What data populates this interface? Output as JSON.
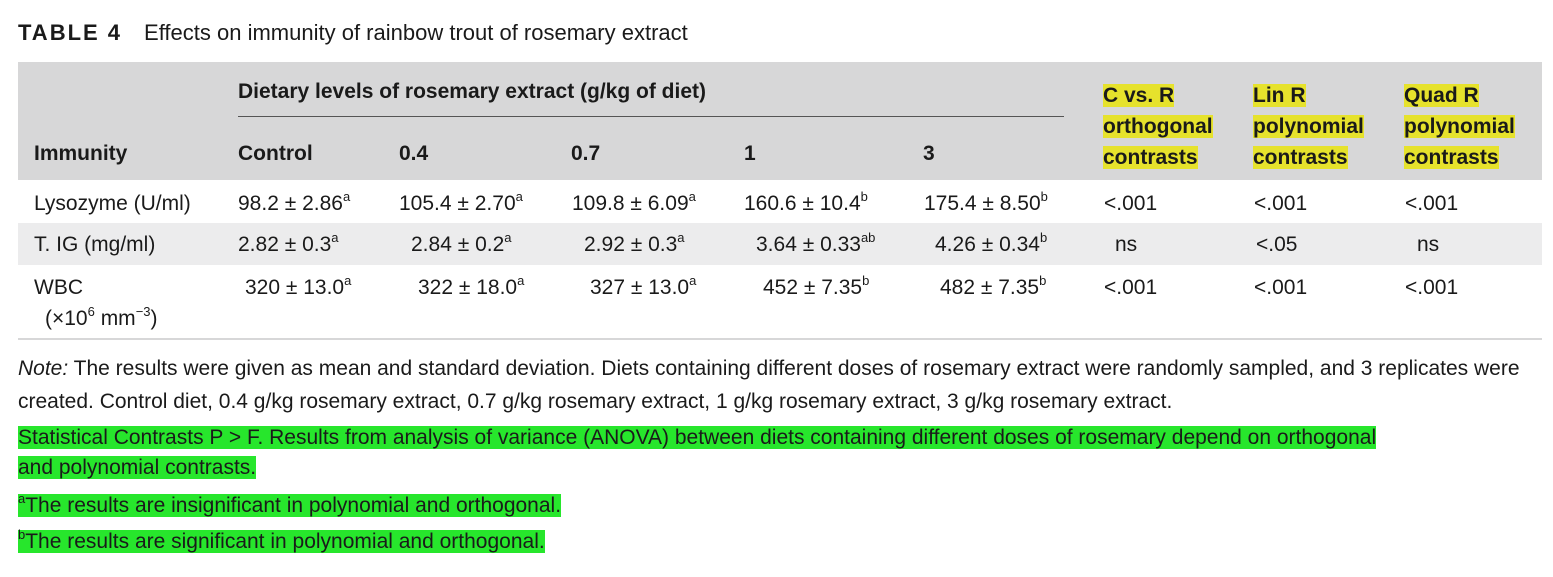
{
  "caption": {
    "label": "TABLE 4",
    "title": "Effects on immunity of rainbow trout of rosemary extract"
  },
  "header": {
    "group_label": "Dietary levels of rosemary extract (g/kg of diet)",
    "row_label": "Immunity",
    "dose_columns": [
      "Control",
      "0.4",
      "0.7",
      "1",
      "3"
    ],
    "contrast_columns": [
      [
        "C vs. R",
        "orthogonal",
        "contrasts"
      ],
      [
        "Lin R",
        "polynomial",
        "contrasts"
      ],
      [
        "Quad R",
        "polynomial",
        "contrasts"
      ]
    ]
  },
  "rows": [
    {
      "name": "Lysozyme (U/ml)",
      "cells": [
        [
          "98.2 ± 2.86",
          "a"
        ],
        [
          "105.4 ± 2.70",
          "a"
        ],
        [
          "109.8 ± 6.09",
          "a"
        ],
        [
          "160.6 ± 10.4",
          "b"
        ],
        [
          "175.4 ± 8.50",
          "b"
        ]
      ],
      "contrasts": [
        "<.001",
        "<.001",
        "<.001"
      ]
    },
    {
      "name": "T. IG (mg/ml)",
      "cells": [
        [
          "2.82 ± 0.3",
          "a"
        ],
        [
          "2.84 ± 0.2",
          "a"
        ],
        [
          "2.92 ± 0.3",
          "a"
        ],
        [
          "3.64 ± 0.33",
          "ab"
        ],
        [
          "4.26 ± 0.34",
          "b"
        ]
      ],
      "contrasts": [
        "ns",
        "<.05",
        "ns"
      ]
    },
    {
      "name": "WBC",
      "unit_parts": [
        "(×10",
        "6",
        " mm",
        "−3",
        ")"
      ],
      "cells": [
        [
          "320 ± 13.0",
          "a"
        ],
        [
          "322 ± 18.0",
          "a"
        ],
        [
          "327 ± 13.0",
          "a"
        ],
        [
          "452 ± 7.35",
          "b"
        ],
        [
          "482 ± 7.35",
          "b"
        ]
      ],
      "contrasts": [
        "<.001",
        "<.001",
        "<.001"
      ]
    }
  ],
  "note": {
    "label": "Note:",
    "text": " The results were given as mean and standard deviation. Diets containing different doses of rosemary extract were randomly sampled, and 3 replicates were created. Control diet, 0.4 g/kg rosemary extract, 0.7 g/kg rosemary extract, 1 g/kg rosemary extract, 3 g/kg rosemary extract."
  },
  "footnotes": {
    "contrasts_line1": "Statistical Contrasts P > F. Results from analysis of variance (ANOVA) between diets containing different doses of rosemary depend on orthogonal",
    "contrasts_line2": "and polynomial contrasts.",
    "a_mark": "a",
    "a_text": "The results are insignificant in polynomial and orthogonal.",
    "b_mark": "b",
    "b_text": "The results are significant in polynomial and orthogonal."
  },
  "colors": {
    "header_bg": "#d7d7d8",
    "row_alt_bg": "#ececed",
    "highlight_yellow": "#e6e22c",
    "highlight_green": "#27e62c"
  }
}
